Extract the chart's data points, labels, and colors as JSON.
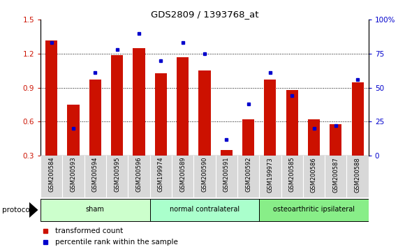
{
  "title": "GDS2809 / 1393768_at",
  "categories": [
    "GSM200584",
    "GSM200593",
    "GSM200594",
    "GSM200595",
    "GSM200596",
    "GSM199974",
    "GSM200589",
    "GSM200590",
    "GSM200591",
    "GSM200592",
    "GSM199973",
    "GSM200585",
    "GSM200586",
    "GSM200587",
    "GSM200588"
  ],
  "red_values": [
    1.32,
    0.75,
    0.97,
    1.19,
    1.25,
    1.03,
    1.17,
    1.05,
    0.35,
    0.62,
    0.97,
    0.88,
    0.62,
    0.58,
    0.95
  ],
  "blue_values_pct": [
    83,
    20,
    61,
    78,
    90,
    70,
    83,
    75,
    12,
    38,
    61,
    44,
    20,
    22,
    56
  ],
  "red_color": "#cc1100",
  "blue_color": "#0000cc",
  "ylim_left": [
    0.3,
    1.5
  ],
  "ylim_right": [
    0,
    100
  ],
  "yticks_left": [
    0.3,
    0.6,
    0.9,
    1.2,
    1.5
  ],
  "yticks_right": [
    0,
    25,
    50,
    75,
    100
  ],
  "ytick_labels_right": [
    "0",
    "25",
    "50",
    "75",
    "100%"
  ],
  "groups": [
    {
      "label": "sham",
      "start": 0,
      "end": 5
    },
    {
      "label": "normal contralateral",
      "start": 5,
      "end": 10
    },
    {
      "label": "osteoarthritic ipsilateral",
      "start": 10,
      "end": 15
    }
  ],
  "group_colors": [
    "#ccffcc",
    "#aaffcc",
    "#88ee88"
  ],
  "protocol_label": "protocol",
  "legend_items": [
    {
      "label": "transformed count",
      "color": "#cc1100"
    },
    {
      "label": "percentile rank within the sample",
      "color": "#0000cc"
    }
  ],
  "bar_width": 0.55,
  "bg_color": "#ffffff",
  "tick_area_color": "#d8d8d8"
}
